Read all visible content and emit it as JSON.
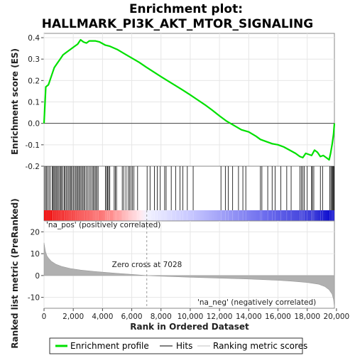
{
  "chart_data": {
    "type": "line",
    "title_line1": "Enrichment plot:",
    "title_line2": "HALLMARK_PI3K_AKT_MTOR_SIGNALING",
    "top_panel": {
      "ylabel": "Enrichment score (ES)",
      "ylim": [
        -0.2,
        0.42
      ],
      "yticks": [
        -0.2,
        -0.1,
        0.0,
        0.1,
        0.2,
        0.3,
        0.4
      ],
      "ytick_labels": [
        "-0.2",
        "-0.1",
        "0.0",
        "0.1",
        "0.2",
        "0.3",
        "0.4"
      ],
      "series": {
        "name": "Enrichment profile",
        "color": "#00e000",
        "x": [
          0,
          120,
          300,
          500,
          700,
          900,
          1100,
          1300,
          1500,
          1700,
          1900,
          2100,
          2300,
          2500,
          2700,
          2900,
          3100,
          3300,
          3500,
          3800,
          4200,
          4500,
          5000,
          5500,
          6000,
          6500,
          7000,
          7500,
          8000,
          8500,
          9000,
          9500,
          10000,
          10500,
          11000,
          11500,
          12000,
          12500,
          13000,
          13500,
          14000,
          14500,
          14800,
          15200,
          15600,
          16000,
          16400,
          16800,
          17200,
          17500,
          17700,
          17900,
          18100,
          18300,
          18500,
          18700,
          18900,
          19100,
          19300,
          19500,
          19600,
          19700,
          19800,
          19860
        ],
        "y": [
          0.0,
          0.17,
          0.18,
          0.22,
          0.26,
          0.28,
          0.3,
          0.32,
          0.33,
          0.34,
          0.35,
          0.36,
          0.37,
          0.39,
          0.38,
          0.375,
          0.385,
          0.385,
          0.385,
          0.38,
          0.365,
          0.36,
          0.345,
          0.325,
          0.305,
          0.285,
          0.262,
          0.24,
          0.218,
          0.197,
          0.176,
          0.155,
          0.133,
          0.11,
          0.087,
          0.062,
          0.035,
          0.01,
          -0.01,
          -0.03,
          -0.04,
          -0.06,
          -0.075,
          -0.085,
          -0.095,
          -0.1,
          -0.11,
          -0.125,
          -0.14,
          -0.155,
          -0.16,
          -0.14,
          -0.145,
          -0.15,
          -0.125,
          -0.135,
          -0.155,
          -0.15,
          -0.16,
          -0.17,
          -0.14,
          -0.1,
          -0.05,
          0.0
        ]
      }
    },
    "hits": [
      60,
      150,
      210,
      330,
      420,
      550,
      620,
      680,
      760,
      830,
      900,
      980,
      1060,
      1140,
      1200,
      1290,
      1380,
      1450,
      1530,
      1620,
      1700,
      1790,
      1850,
      1930,
      2010,
      2100,
      2180,
      2260,
      2330,
      2410,
      2480,
      2560,
      2650,
      2720,
      2800,
      2900,
      3000,
      3100,
      3200,
      3300,
      3380,
      3460,
      3540,
      3620,
      3700,
      4200,
      4280,
      4350,
      4420,
      4500,
      4800,
      4880,
      4960,
      5350,
      5450,
      5600,
      5750,
      5850,
      5950,
      6050,
      6150,
      6400,
      7050,
      7250,
      7550,
      7750,
      7950,
      8250,
      8350,
      8700,
      9000,
      9300,
      9500,
      9800,
      10200,
      12100,
      12400,
      12600,
      12900,
      13300,
      13600,
      13800,
      14800,
      14900,
      15300,
      15600,
      15800,
      16200,
      16600,
      16900,
      17500,
      17600,
      17700,
      17800,
      18000,
      18300,
      18350,
      18450,
      18900,
      19050,
      19550,
      19620,
      19680,
      19730,
      19780,
      19830
    ],
    "gradient_stops": [
      {
        "x": 0,
        "color": "#ee0000"
      },
      {
        "x": 4700,
        "color": "#ff9090"
      },
      {
        "x": 6600,
        "color": "#ffe8ee"
      },
      {
        "x": 7028,
        "color": "#f2f2ff"
      },
      {
        "x": 10000,
        "color": "#c8c8ff"
      },
      {
        "x": 15000,
        "color": "#6e6eee"
      },
      {
        "x": 18500,
        "color": "#3a3ad8"
      },
      {
        "x": 19860,
        "color": "#0000cc"
      }
    ],
    "bottom_panel": {
      "ylabel_line1": "Ranked list metric (PreRanked)",
      "ylim": [
        -15,
        25
      ],
      "yticks": [
        -10,
        0,
        10,
        20
      ],
      "ytick_labels": [
        "-10",
        "0",
        "10",
        "20"
      ],
      "metric_x": [
        0,
        50,
        100,
        200,
        300,
        500,
        800,
        1200,
        1800,
        2500,
        3500,
        5000,
        6000,
        7028,
        8000,
        10000,
        12000,
        14000,
        16000,
        17000,
        18000,
        18800,
        19200,
        19500,
        19700,
        19800,
        19860
      ],
      "metric_y": [
        15,
        13,
        11,
        9,
        8,
        6.5,
        5.2,
        4.2,
        3.2,
        2.5,
        1.8,
        1.0,
        0.5,
        0.0,
        -0.3,
        -0.8,
        -1.2,
        -1.6,
        -2.2,
        -2.6,
        -3.2,
        -4.0,
        -5.0,
        -6.5,
        -8.5,
        -11,
        -14.5
      ],
      "fill_color": "#b0b0b0",
      "zero_cross_label": "Zero cross at 7028",
      "zero_cross": 7028,
      "pos_label": "'na_pos' (positively correlated)",
      "pos_color": "#ff0000",
      "neg_label": "'na_neg' (negatively correlated)",
      "neg_color": "#2222cc"
    },
    "xlabel": "Rank in Ordered Dataset",
    "xlim": [
      0,
      19860
    ],
    "xticks": [
      0,
      2000,
      4000,
      6000,
      8000,
      10000,
      12000,
      14000,
      16000,
      18000,
      20000
    ],
    "xtick_labels": [
      "0",
      "2,000",
      "4,000",
      "6,000",
      "8,000",
      "10,000",
      "12,000",
      "14,000",
      "16,000",
      "18,000",
      "20,000"
    ],
    "legend": [
      {
        "label": "Enrichment profile",
        "color": "#00e000",
        "kind": "thick-line"
      },
      {
        "label": "Hits",
        "color": "#000000",
        "kind": "thin-line"
      },
      {
        "label": "Ranking metric scores",
        "color": "#c0c0c0",
        "kind": "thin-line"
      }
    ],
    "legend_position": "bottom"
  }
}
